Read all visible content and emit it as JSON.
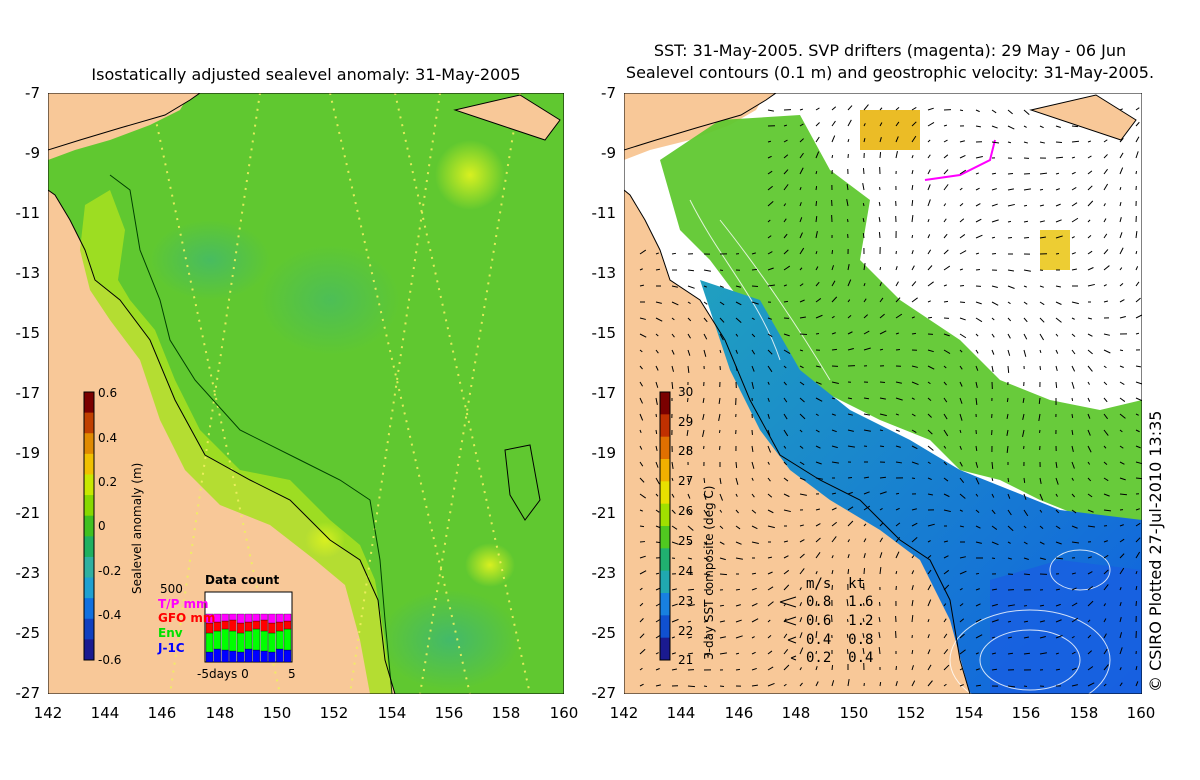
{
  "left_panel": {
    "title": "Isostatically adjusted sealevel anomaly: 31-May-2005",
    "colorbar": {
      "title": "Sealevel anomaly (m)",
      "ticks": [
        "0.6",
        "0.4",
        "0.2",
        "0",
        "-0.2",
        "-0.4",
        "-0.6"
      ],
      "colors": [
        "#7a0000",
        "#c04000",
        "#e08a00",
        "#f0c000",
        "#c8e800",
        "#88d800",
        "#40c020",
        "#20b060",
        "#30b0a0",
        "#20a0d0",
        "#1070e0",
        "#1040c0",
        "#1a1a90"
      ]
    },
    "data_count": {
      "title": "Data count",
      "ymax": "500",
      "legend": [
        {
          "label": "T/P mm",
          "color": "#ff00ff"
        },
        {
          "label": "GFO mm",
          "color": "#ff0000"
        },
        {
          "label": "Env",
          "color": "#00ff00"
        },
        {
          "label": "J-1C",
          "color": "#0000ff"
        }
      ],
      "xlabel": "-5days 0",
      "xmax": "5"
    }
  },
  "right_panel": {
    "title_line1": "SST: 31-May-2005. SVP drifters (magenta): 29 May - 06 Jun",
    "title_line2": "Sealevel contours (0.1 m) and geostrophic velocity: 31-May-2005.",
    "colorbar": {
      "title": "3-day SST composite (deg C)",
      "ticks": [
        "30",
        "29",
        "28",
        "27",
        "26",
        "25",
        "24",
        "23",
        "22",
        "21"
      ],
      "colors": [
        "#7a0000",
        "#c03000",
        "#e07000",
        "#f0b000",
        "#e8e000",
        "#a0e000",
        "#50c820",
        "#20b070",
        "#20a8b0",
        "#1880e0",
        "#1050d0",
        "#1a1a90"
      ]
    },
    "speed_legend": {
      "header": "m/s  kt",
      "rows": [
        "0.8  1.6",
        "0.6  1.2",
        "0.4  0.8",
        "0.2  0.4"
      ]
    },
    "credit": "© CSIRO Plotted 27-Jul-2010 13:35"
  },
  "axes": {
    "y_ticks": [
      "-7",
      "-9",
      "-11",
      "-13",
      "-15",
      "-17",
      "-19",
      "-21",
      "-23",
      "-25",
      "-27"
    ],
    "x_ticks": [
      "142",
      "144",
      "146",
      "148",
      "150",
      "152",
      "154",
      "156",
      "158",
      "160"
    ]
  },
  "colors": {
    "land": "#f8c898",
    "ocean_left": "#60c830",
    "sst_cloud": "#ffffff"
  }
}
